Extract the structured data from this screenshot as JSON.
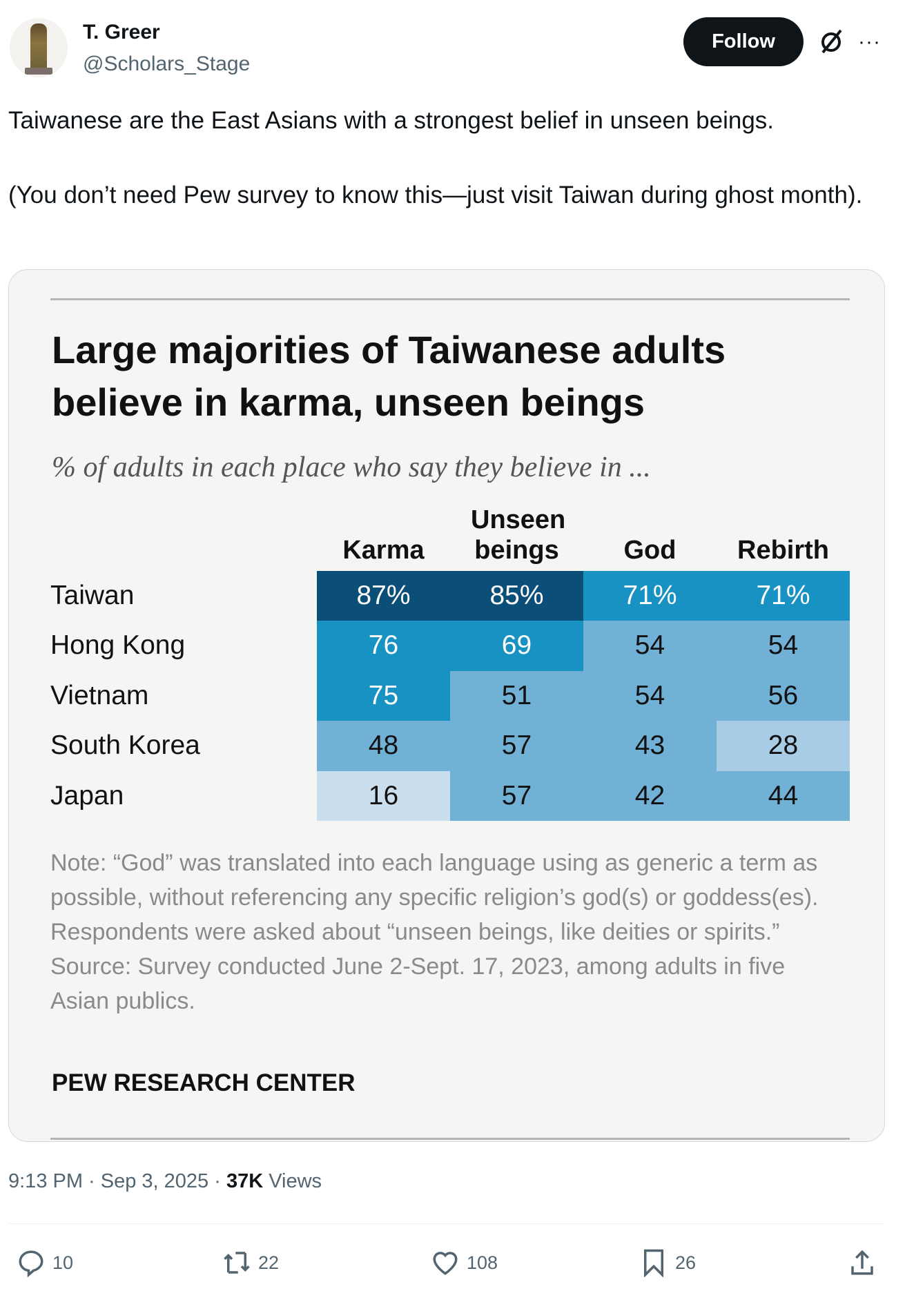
{
  "author": {
    "name": "T. Greer",
    "handle": "@Scholars_Stage"
  },
  "follow_label": "Follow",
  "more_label": "···",
  "tweet_text": [
    "Taiwanese are the East Asians with a strongest belief in unseen beings.",
    "(You don’t need Pew survey to know this—just visit Taiwan during ghost month)."
  ],
  "chart_data": {
    "type": "table",
    "title": "Large majorities of Taiwanese adults believe in karma, unseen beings",
    "subtitle": "% of adults in each place who say they believe in ...",
    "columns": [
      "Karma",
      "Unseen beings",
      "God",
      "Rebirth"
    ],
    "rows": [
      {
        "label": "Taiwan",
        "values": [
          87,
          85,
          71,
          71
        ],
        "display": [
          "87%",
          "85%",
          "71%",
          "71%"
        ]
      },
      {
        "label": "Hong Kong",
        "values": [
          76,
          69,
          54,
          54
        ],
        "display": [
          "76",
          "69",
          "54",
          "54"
        ]
      },
      {
        "label": "Vietnam",
        "values": [
          75,
          51,
          54,
          56
        ],
        "display": [
          "75",
          "51",
          "54",
          "56"
        ]
      },
      {
        "label": "South Korea",
        "values": [
          48,
          57,
          43,
          28
        ],
        "display": [
          "48",
          "57",
          "43",
          "28"
        ]
      },
      {
        "label": "Japan",
        "values": [
          16,
          57,
          42,
          44
        ],
        "display": [
          "16",
          "57",
          "42",
          "44"
        ]
      }
    ],
    "color_scale": [
      {
        "min": 80,
        "color": "#0b4f79"
      },
      {
        "min": 60,
        "color": "#1891c3"
      },
      {
        "min": 40,
        "color": "#72b1d6"
      },
      {
        "min": 20,
        "color": "#a8cce6"
      },
      {
        "min": 0,
        "color": "#cadeed"
      }
    ],
    "note": "Note: “God” was translated into each language using as generic a term as possible, without referencing any specific religion’s god(s) or goddess(es). Respondents were asked about “unseen beings, like deities or spirits.”",
    "source": "Source: Survey conducted June 2-Sept. 17, 2023, among adults in five Asian publics.",
    "brand": "PEW RESEARCH CENTER"
  },
  "meta": {
    "time": "9:13 PM · Sep 3, 2025 · ",
    "views_count": "37K",
    "views_label": " Views"
  },
  "actions": {
    "replies": "10",
    "reposts": "22",
    "likes": "108",
    "bookmarks": "26"
  }
}
